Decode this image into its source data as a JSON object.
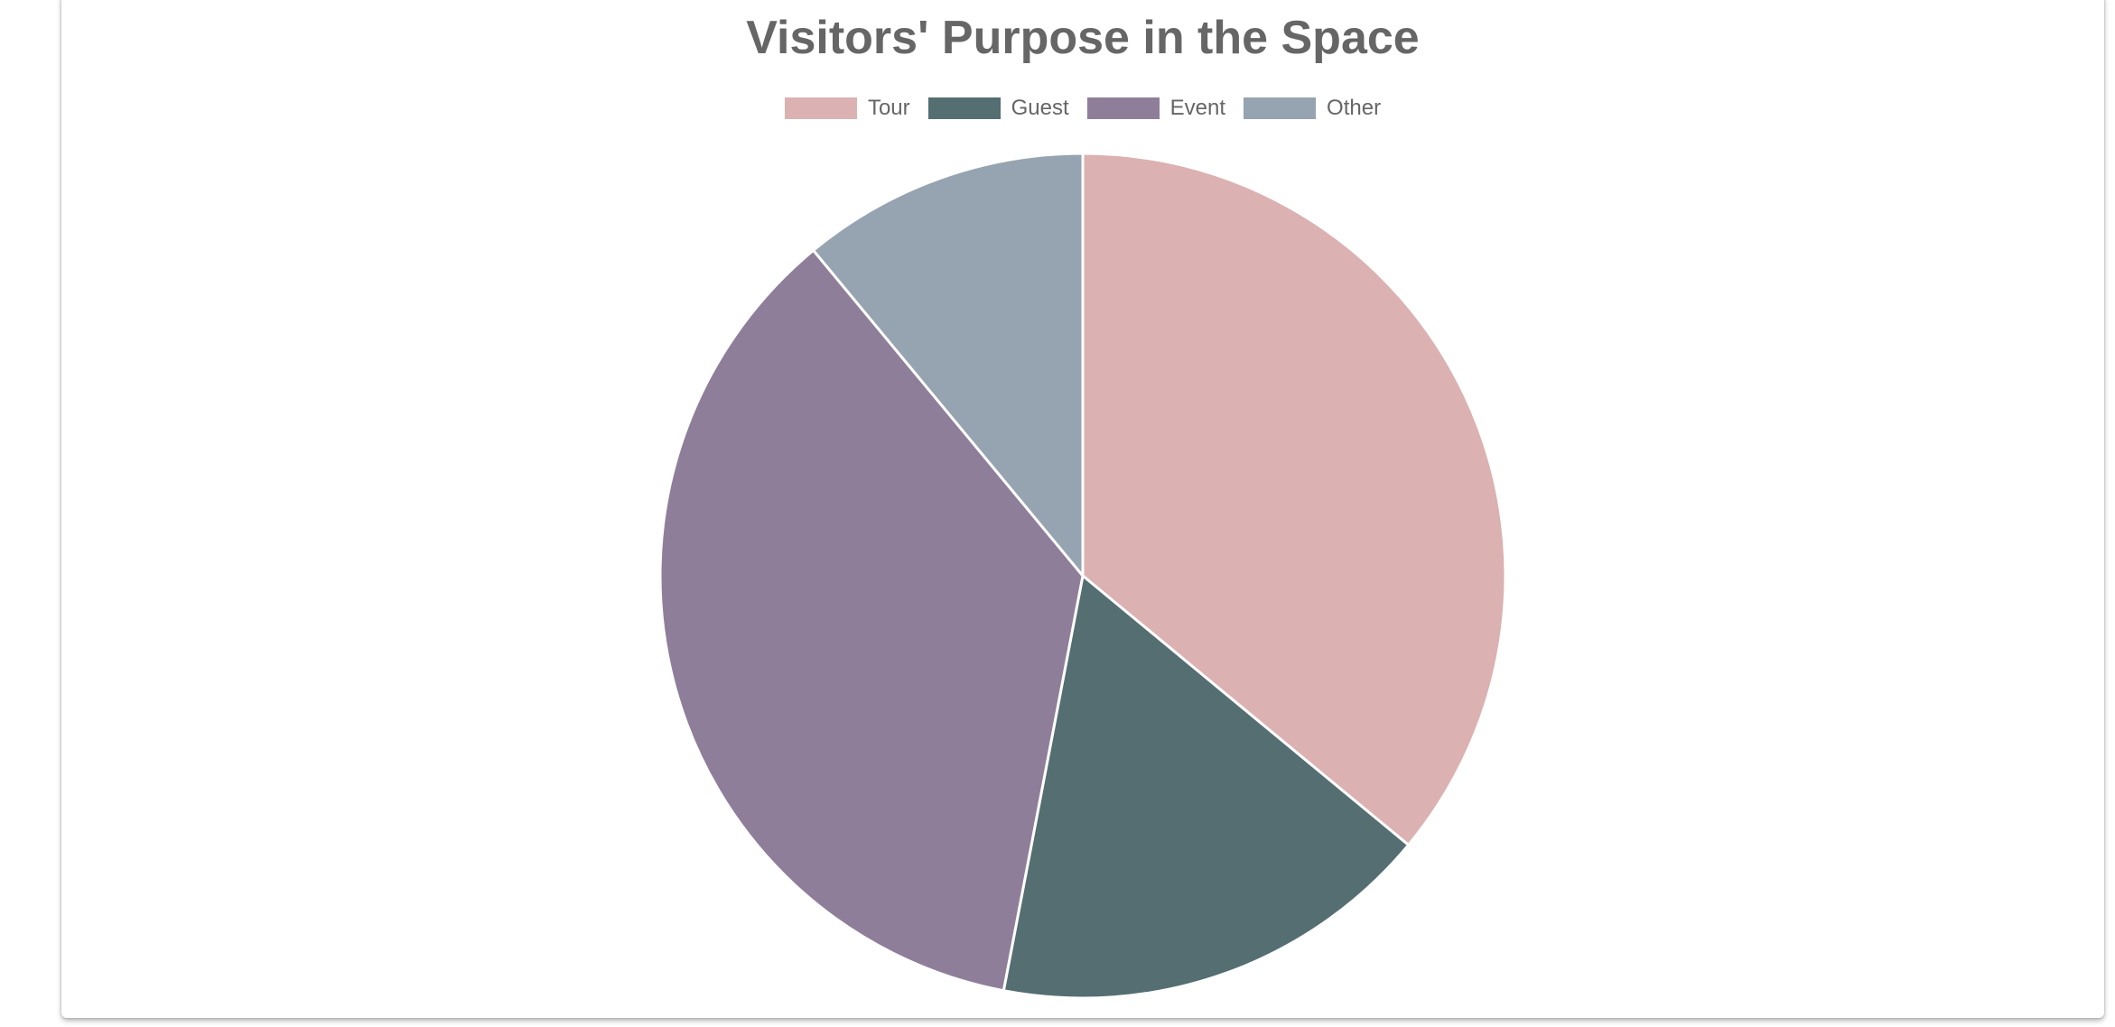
{
  "chart_data": {
    "type": "pie",
    "title": "Visitors' Purpose in the Space",
    "legend_position": "top",
    "categories": [
      "Tour",
      "Guest",
      "Event",
      "Other"
    ],
    "values": [
      36,
      17,
      36,
      11
    ],
    "colors": [
      "#dbb1b1",
      "#546e72",
      "#8f7e9a",
      "#96a3b1"
    ],
    "slice_border_color": "#ffffff"
  }
}
